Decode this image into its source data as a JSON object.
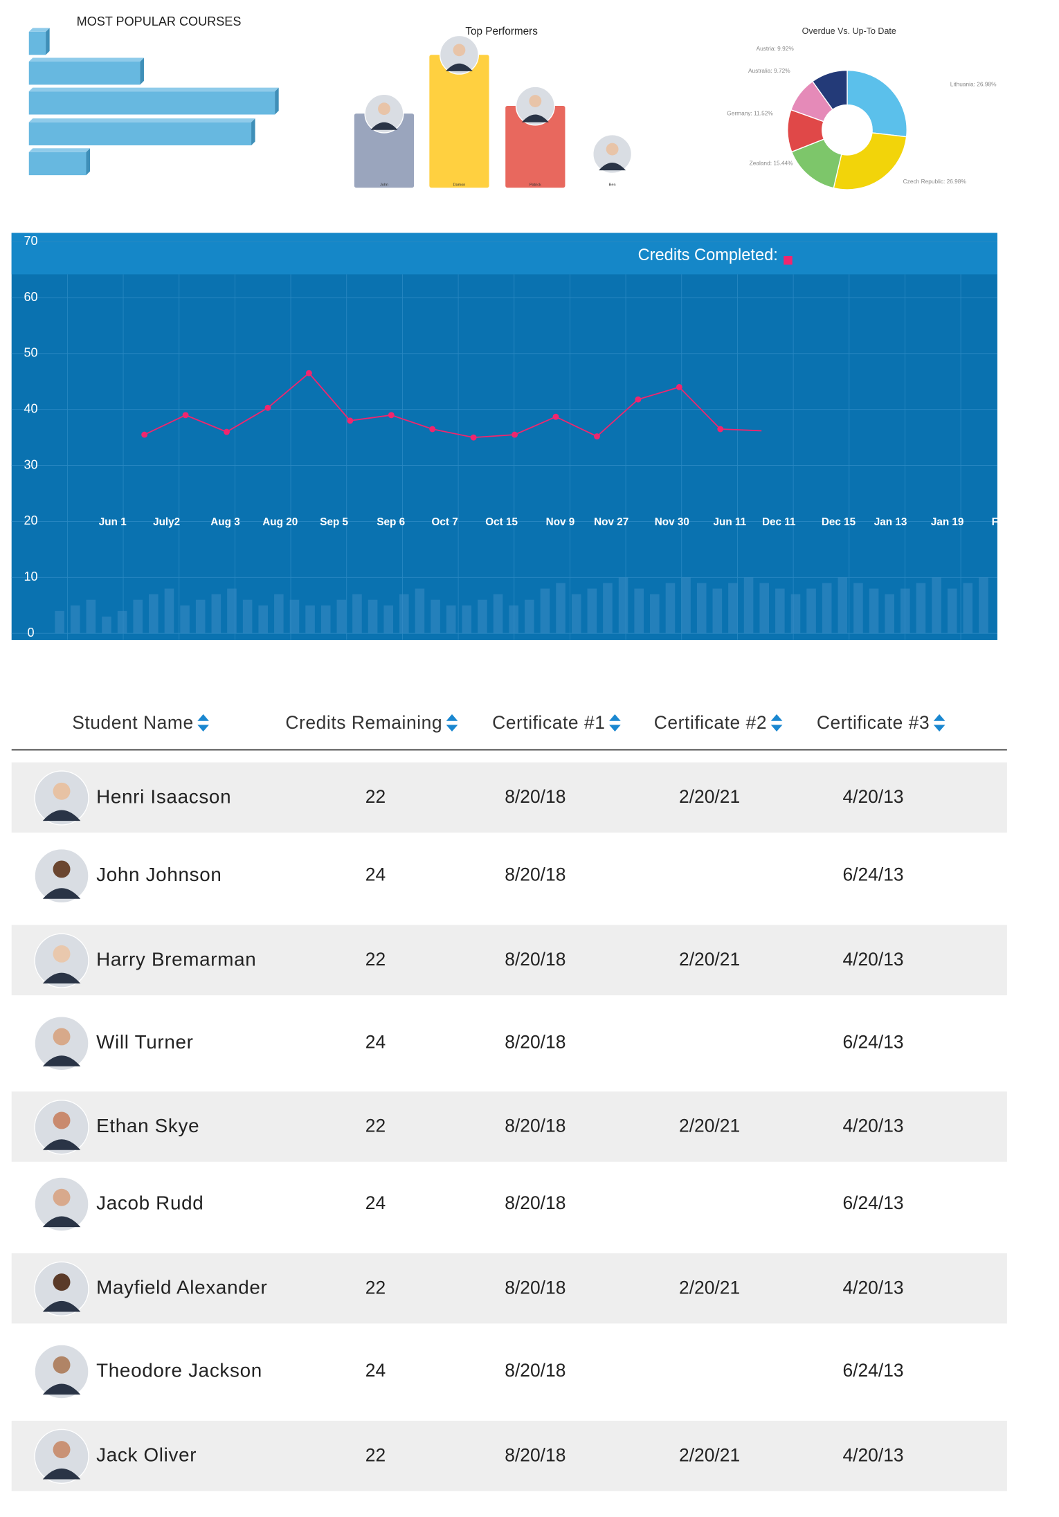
{
  "chart_data": [
    {
      "type": "hbar",
      "title": "MOST POPULAR COURSES",
      "values": [
        0.5,
        3.3,
        7.3,
        6.6,
        1.7
      ],
      "color": "#67b8e0",
      "xlim": [
        0,
        8
      ]
    },
    {
      "type": "bar",
      "title": "Top Performers",
      "categories": [
        "John",
        "Damon",
        "Patrick",
        "Ben"
      ],
      "values": [
        77,
        138,
        85,
        0
      ],
      "colors": [
        "#9aa5bd",
        "#ffd040",
        "#e8685e",
        "#cccccc"
      ],
      "ylim": [
        0,
        150
      ]
    },
    {
      "type": "donut",
      "title": "Overdue Vs. Up-To Date",
      "categories": [
        "Lithuania",
        "Czech Republic",
        "Zealand",
        "Germany",
        "Australia",
        "Austria"
      ],
      "values": [
        26.98,
        26.98,
        15.44,
        11.52,
        9.72,
        9.92
      ],
      "value_labels": [
        "Lithuania: 26.98%",
        "Czech Republic: 26.98%",
        "Zealand: 15.44%",
        "Germany: 11.52%",
        "Australia: 9.72%",
        "Austria: 9.92%"
      ],
      "colors": [
        "#5bc0eb",
        "#f2d40a",
        "#7dc66a",
        "#e04848",
        "#e58ab8",
        "#233a78"
      ]
    },
    {
      "type": "line",
      "xticks": [
        "Jun 1",
        "July2",
        "Aug 3",
        "Aug 20",
        "Sep 5",
        "Sep 6",
        "Oct 7",
        "Oct 15",
        "Nov 9",
        "Nov 27",
        "Nov 30",
        "Jun 11",
        "Dec 11",
        "Dec 15",
        "Jan 13",
        "Jan 19",
        "Feb"
      ],
      "series": [
        {
          "name": "Credits Completed:",
          "color": "#f0266e",
          "values": [
            35.5,
            39,
            36,
            40.3,
            46.5,
            38,
            39,
            36.5,
            35,
            35.5,
            38.7,
            35.2,
            41.8,
            44,
            36.5,
            36.2
          ]
        },
        {
          "color": "#3a8cc4",
          "values": [
            4,
            5,
            6,
            3,
            4,
            6,
            7,
            8,
            5,
            6,
            7,
            8,
            6,
            5,
            7,
            6,
            5,
            5,
            6,
            7,
            6,
            5,
            7,
            8,
            6,
            5,
            5,
            6,
            7,
            5,
            6,
            8,
            9,
            7,
            8,
            9,
            10,
            8,
            7,
            9,
            10,
            9,
            8,
            9,
            10,
            9,
            8,
            7,
            8,
            9,
            10,
            9,
            8,
            7,
            8,
            9,
            10,
            8,
            9,
            10
          ]
        }
      ],
      "ylim": [
        0,
        70
      ],
      "yticks": [
        0,
        10,
        20,
        30,
        40,
        50,
        60,
        70
      ],
      "grid": true
    }
  ],
  "table": {
    "columns": [
      "Student Name",
      "Credits Remaining",
      "Certificate #1",
      "Certificate #2",
      "Certificate #3"
    ],
    "rows": [
      [
        "Henri Isaacson",
        22,
        "8/20/18",
        "2/20/21",
        "4/20/13"
      ],
      [
        "John Johnson",
        24,
        "8/20/18",
        null,
        "6/24/13"
      ],
      [
        "Harry Bremarman",
        22,
        "8/20/18",
        "2/20/21",
        "4/20/13"
      ],
      [
        "Will Turner",
        24,
        "8/20/18",
        null,
        "6/24/13"
      ],
      [
        "Ethan Skye",
        22,
        "8/20/18",
        "2/20/21",
        "4/20/13"
      ],
      [
        "Jacob Rudd",
        24,
        "8/20/18",
        null,
        "6/24/13"
      ],
      [
        "Mayfield Alexander",
        22,
        "8/20/18",
        "2/20/21",
        "4/20/13"
      ],
      [
        "Theodore Jackson",
        24,
        "8/20/18",
        null,
        "6/24/13"
      ],
      [
        "Jack Oliver",
        22,
        "8/20/18",
        "2/20/21",
        "4/20/13"
      ]
    ]
  }
}
